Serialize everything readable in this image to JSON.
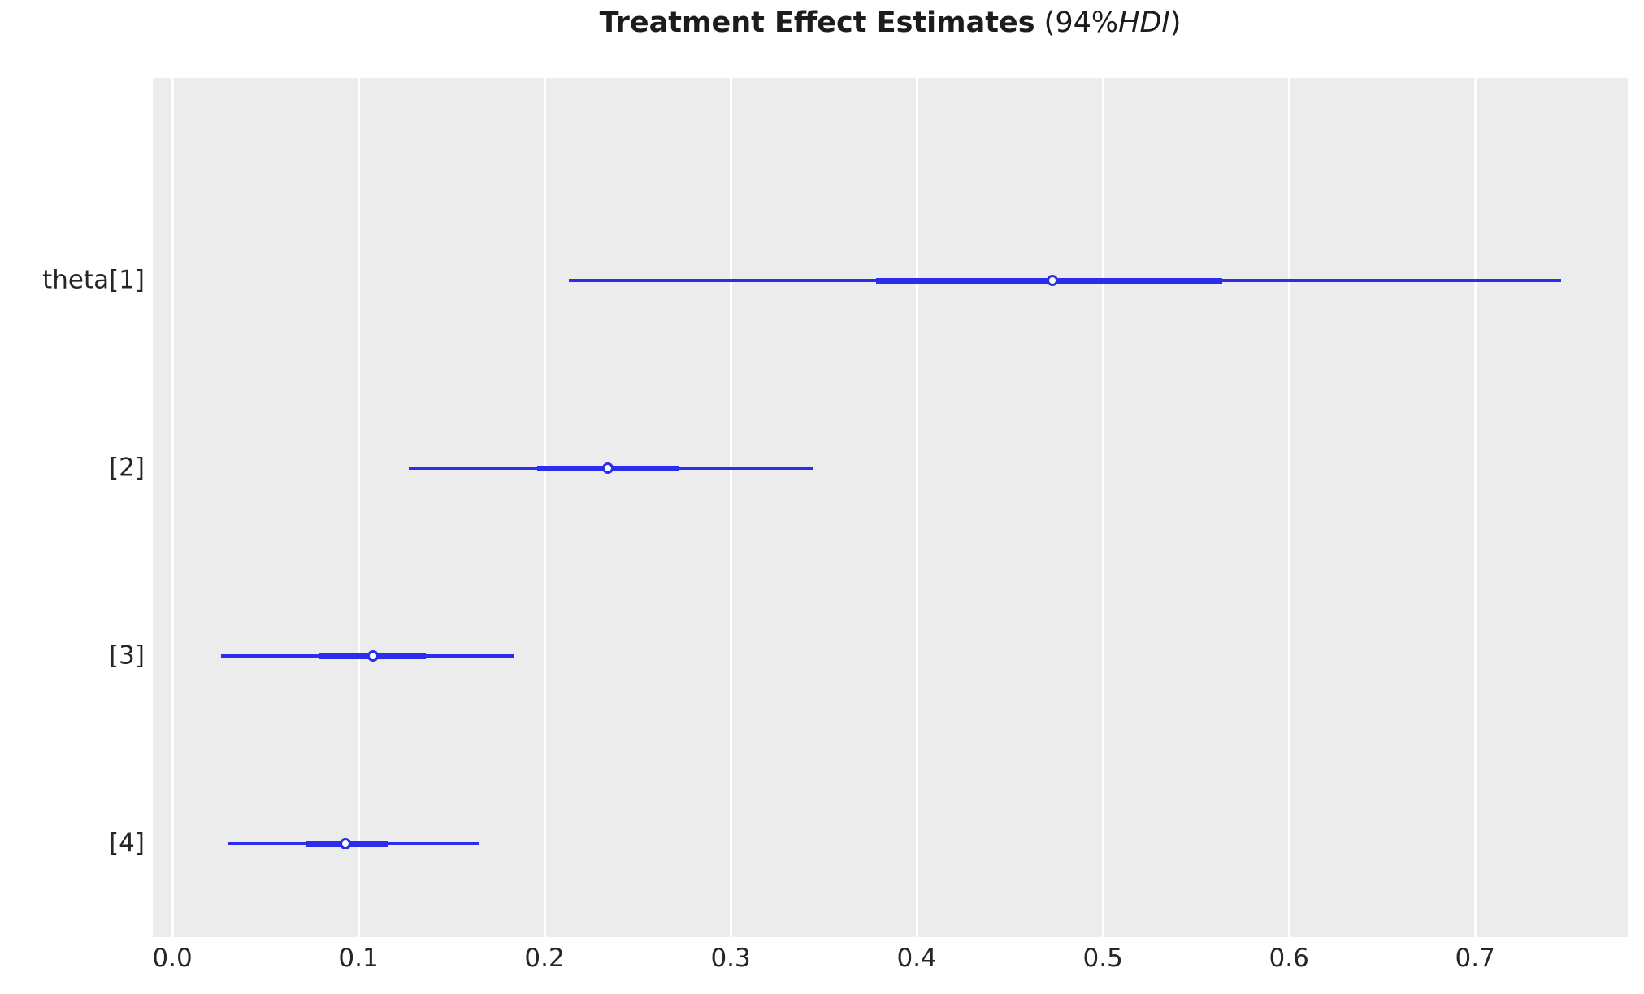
{
  "title": {
    "bold": "Treatment Effect Estimates",
    "normal_open": " (94%",
    "italic": "HDI",
    "normal_close": ")"
  },
  "colors": {
    "interval_line": "#2a2eec",
    "panel_background": "#ececec",
    "gridline": "#ffffff",
    "tick_text": "#262626",
    "title_text": "#1c1c1c",
    "marker_fill": "#ffffff"
  },
  "chart_data": {
    "type": "scatter",
    "variant": "forest-plot (credible-interval plot, ArviZ plot_forest style)",
    "title": "Treatment Effect Estimates (94%HDI)",
    "xlabel": "",
    "ylabel": "",
    "xlim": [
      -0.0105,
      0.782
    ],
    "x_ticks": [
      0.0,
      0.1,
      0.2,
      0.3,
      0.4,
      0.5,
      0.6,
      0.7
    ],
    "grid": "vertical white gridlines on gray panel",
    "legend_position": "none",
    "rows": [
      {
        "label": "theta[1]",
        "median": 0.473,
        "hdi_94": [
          0.213,
          0.746
        ],
        "iqr": [
          0.378,
          0.564
        ]
      },
      {
        "label": "[2]",
        "median": 0.234,
        "hdi_94": [
          0.127,
          0.344
        ],
        "iqr": [
          0.196,
          0.272
        ]
      },
      {
        "label": "[3]",
        "median": 0.108,
        "hdi_94": [
          0.026,
          0.184
        ],
        "iqr": [
          0.079,
          0.136
        ]
      },
      {
        "label": "[4]",
        "median": 0.093,
        "hdi_94": [
          0.03,
          0.165
        ],
        "iqr": [
          0.072,
          0.116
        ]
      }
    ]
  }
}
